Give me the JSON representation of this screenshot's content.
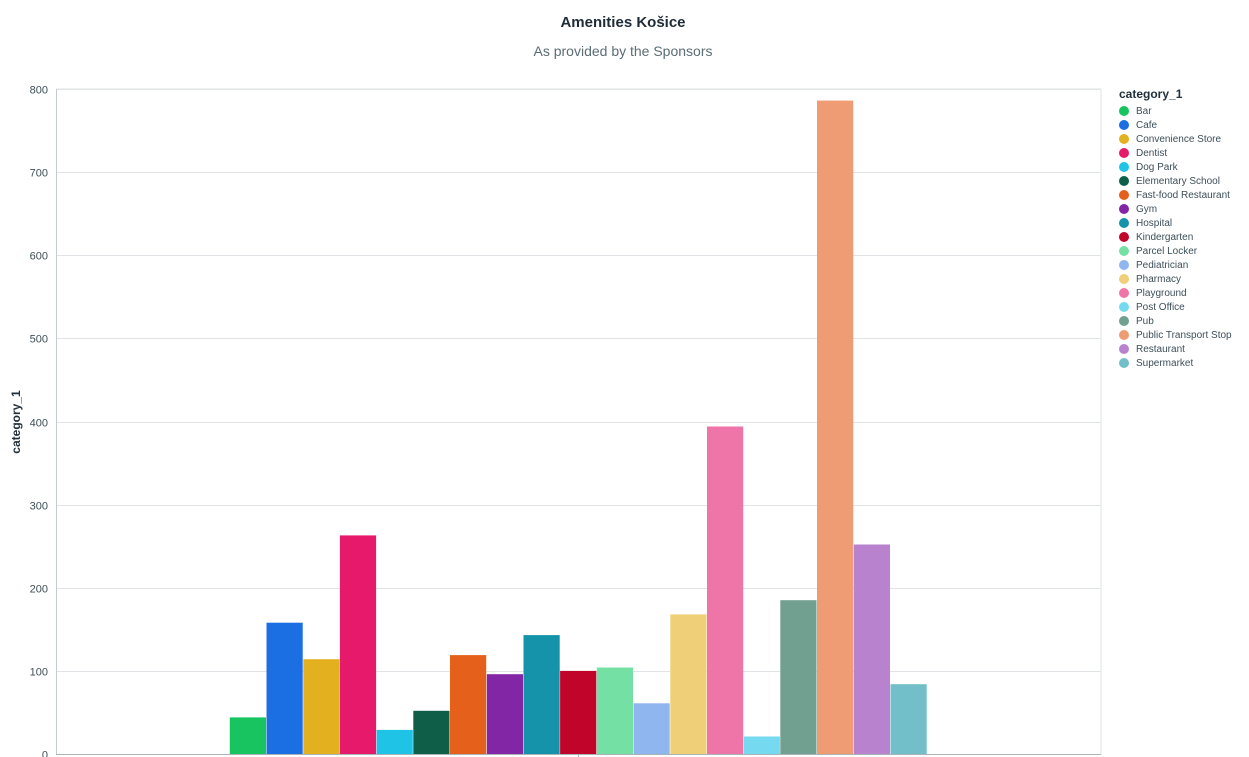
{
  "chart_data": {
    "type": "bar",
    "title": "Amenities Košice",
    "subtitle": "As provided by the Sponsors",
    "xlabel": "",
    "ylabel": "category_1",
    "ylim": [
      0,
      800
    ],
    "yticks": [
      0,
      100,
      200,
      300,
      400,
      500,
      600,
      700,
      800
    ],
    "grid": true,
    "legend_title": "category_1",
    "legend_position": "right",
    "categories": [
      "Bar",
      "Cafe",
      "Convenience Store",
      "Dentist",
      "Dog Park",
      "Elementary School",
      "Fast-food Restaurant",
      "Gym",
      "Hospital",
      "Kindergarten",
      "Parcel Locker",
      "Pediatrician",
      "Pharmacy",
      "Playground",
      "Post Office",
      "Pub",
      "Public Transport Stop",
      "Restaurant",
      "Supermarket"
    ],
    "values": [
      44,
      158,
      114,
      263,
      29,
      52,
      119,
      96,
      143,
      100,
      104,
      61,
      168,
      394,
      21,
      185,
      786,
      252,
      84
    ],
    "colors": [
      "#17c45f",
      "#1b6fe2",
      "#e3b01f",
      "#e6196b",
      "#1ec3e6",
      "#0f5f48",
      "#e5601a",
      "#8326a6",
      "#1493aa",
      "#c1042a",
      "#74e0a4",
      "#8fb6ee",
      "#efcf77",
      "#ef75a8",
      "#75d9ef",
      "#719f90",
      "#ef9c74",
      "#b882ce",
      "#72bfca"
    ]
  }
}
